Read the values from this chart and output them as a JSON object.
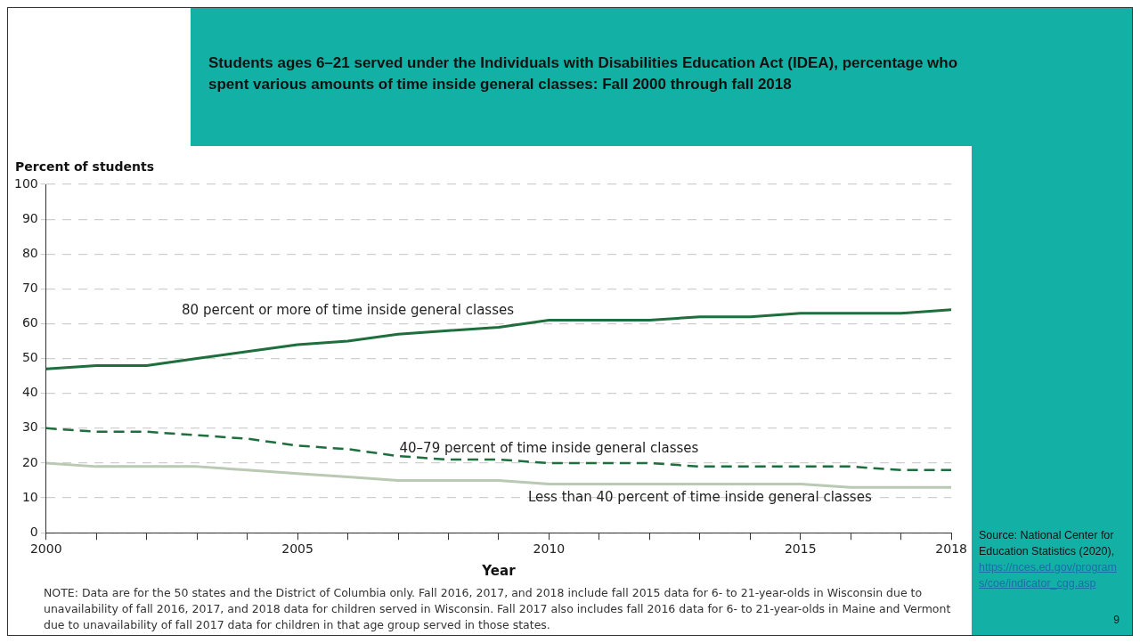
{
  "chart_data": {
    "type": "line",
    "title": "Students ages 6–21 served under the Individuals with Disabilities Education Act (IDEA), percentage who spent various amounts of time inside general classes: Fall 2000 through fall 2018",
    "xlabel": "Year",
    "ylabel": "Percent of students",
    "x": [
      2000,
      2001,
      2002,
      2003,
      2004,
      2005,
      2006,
      2007,
      2008,
      2009,
      2010,
      2011,
      2012,
      2013,
      2014,
      2015,
      2016,
      2017,
      2018
    ],
    "series": [
      {
        "name": "80 percent or more of time inside general classes",
        "color": "#1e6e3e",
        "line_style": "solid",
        "values": [
          47,
          48,
          48,
          50,
          52,
          54,
          55,
          57,
          58,
          59,
          61,
          61,
          61,
          62,
          62,
          63,
          63,
          63,
          64
        ]
      },
      {
        "name": "40–79 percent of time inside general classes",
        "color": "#1e6e3e",
        "line_style": "dashed",
        "values": [
          30,
          29,
          29,
          28,
          27,
          25,
          24,
          22,
          21,
          21,
          20,
          20,
          20,
          19,
          19,
          19,
          19,
          18,
          18
        ]
      },
      {
        "name": "Less than 40 percent of time inside general classes",
        "color": "#b9c9b4",
        "line_style": "solid",
        "values": [
          20,
          19,
          19,
          19,
          18,
          17,
          16,
          15,
          15,
          15,
          14,
          14,
          14,
          14,
          14,
          14,
          13,
          13,
          13
        ]
      }
    ],
    "xlim": [
      2000,
      2018
    ],
    "xticks": [
      2000,
      {
        "value": 2001,
        "label": null
      },
      {
        "value": 2002,
        "label": null
      },
      {
        "value": 2003,
        "label": null
      },
      {
        "value": 2004,
        "label": null
      },
      2005,
      {
        "value": 2006,
        "label": null
      },
      {
        "value": 2007,
        "label": null
      },
      {
        "value": 2008,
        "label": null
      },
      {
        "value": 2009,
        "label": null
      },
      2010,
      {
        "value": 2011,
        "label": null
      },
      {
        "value": 2012,
        "label": null
      },
      {
        "value": 2013,
        "label": null
      },
      {
        "value": 2014,
        "label": null
      },
      2015,
      {
        "value": 2016,
        "label": null
      },
      {
        "value": 2017,
        "label": null
      },
      2018
    ],
    "ylim": [
      0,
      100
    ],
    "yticks": [
      0,
      10,
      20,
      30,
      40,
      50,
      60,
      70,
      80,
      90,
      100
    ],
    "grid": "y",
    "marker": "none",
    "legend": false,
    "annotations": [
      "Source: National Center for Education Statistics (2020),",
      "https://nces.ed.gov/programs/coe/indicator_cgg.asp",
      "NOTE: Data are for the 50 states and the District of Columbia only. Fall 2016, 2017, and 2018 include fall 2015 data for 6- to 21-year-olds in Wisconsin due to unavailability of fall 2016, 2017, and 2018 data for children served in Wisconsin. Fall 2017 also includes fall 2016 data for 6- to 21-year-olds in Maine and Vermont due to unavailability of fall 2017 data for children in that age group served in those states.",
      "9"
    ]
  }
}
